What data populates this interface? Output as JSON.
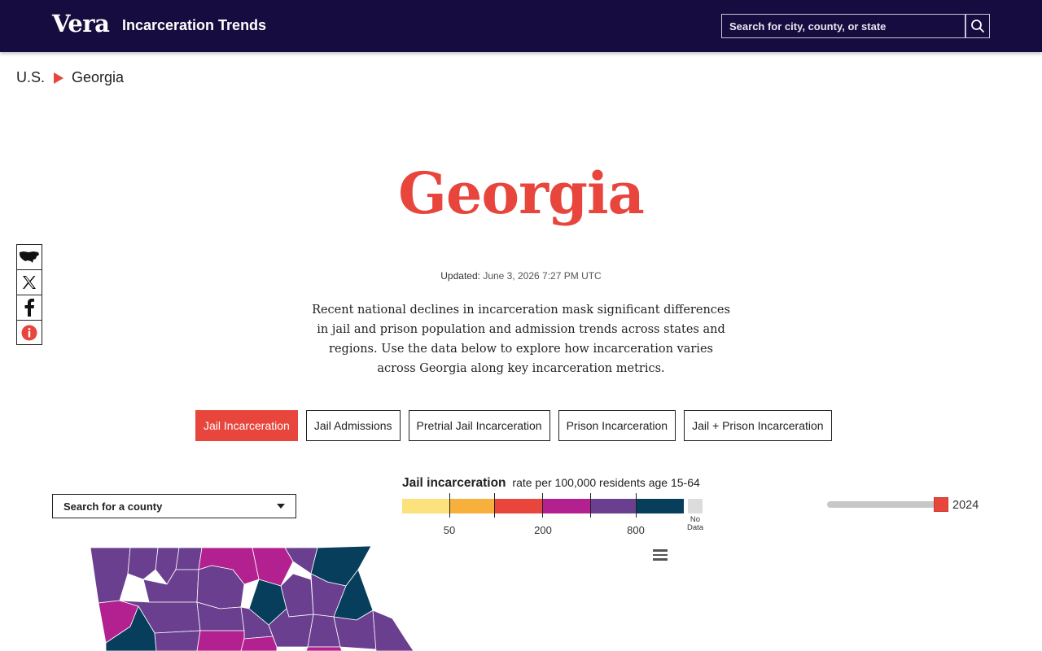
{
  "header": {
    "logo": "Vera",
    "site_title": "Incarceration Trends",
    "search_placeholder": "Search for city, county, or state"
  },
  "breadcrumb": {
    "root": "U.S.",
    "current": "Georgia"
  },
  "page": {
    "title": "Georgia",
    "updated_label": "Updated:",
    "updated_value": "June 3, 2026 7:27 PM UTC",
    "intro": "Recent national declines in incarceration mask significant differences in jail and prison population and admission trends across states and regions. Use the data below to explore how incarceration varies across Georgia along key incarceration metrics."
  },
  "share": {
    "icons": [
      "us-map-icon",
      "x-icon",
      "facebook-icon",
      "info-icon"
    ]
  },
  "tabs": [
    {
      "label": "Jail Incarceration",
      "active": true
    },
    {
      "label": "Jail Admissions",
      "active": false
    },
    {
      "label": "Pretrial Jail Incarceration",
      "active": false
    },
    {
      "label": "Prison Incarceration",
      "active": false
    },
    {
      "label": "Jail + Prison Incarceration",
      "active": false
    }
  ],
  "county_search": {
    "placeholder": "Search for a county"
  },
  "legend": {
    "title": "Jail incarceration",
    "subtitle": "rate per 100,000 residents age 15-64",
    "ticks": [
      "50",
      "200",
      "800"
    ],
    "no_data_line1": "No",
    "no_data_line2": "Data",
    "colors": [
      "#fbe27d",
      "#f7b03c",
      "#e8453c",
      "#b3208f",
      "#6b3f8f",
      "#063e5c"
    ],
    "no_data_color": "#dcdcdc"
  },
  "year_slider": {
    "year": "2024",
    "position": 1.0
  },
  "map": {
    "colors": {
      "purple": "#6b3f8f",
      "magenta": "#b3208f",
      "navy": "#063e5c",
      "border": "#ffffff"
    }
  }
}
